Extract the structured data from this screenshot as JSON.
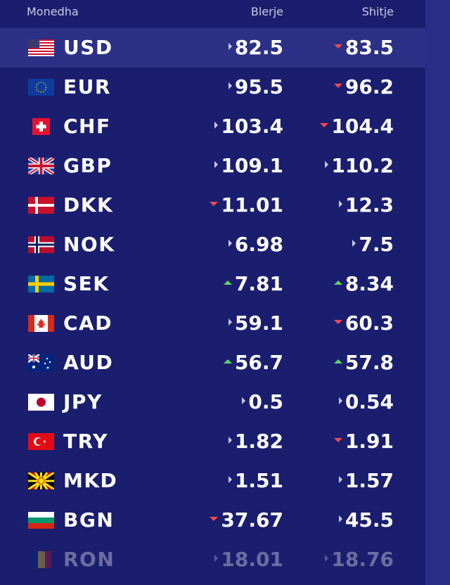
{
  "header": {
    "currency": "Monedha",
    "buy": "Blerje",
    "sell": "Shitje"
  },
  "rates": [
    {
      "code": "USD",
      "flag": "us-flag-icon",
      "buy": "82.5",
      "buy_trend": "neutral",
      "sell": "83.5",
      "sell_trend": "down"
    },
    {
      "code": "EUR",
      "flag": "eu-flag-icon",
      "buy": "95.5",
      "buy_trend": "neutral",
      "sell": "96.2",
      "sell_trend": "down"
    },
    {
      "code": "CHF",
      "flag": "ch-flag-icon",
      "buy": "103.4",
      "buy_trend": "neutral",
      "sell": "104.4",
      "sell_trend": "down"
    },
    {
      "code": "GBP",
      "flag": "gb-flag-icon",
      "buy": "109.1",
      "buy_trend": "neutral",
      "sell": "110.2",
      "sell_trend": "neutral"
    },
    {
      "code": "DKK",
      "flag": "dk-flag-icon",
      "buy": "11.01",
      "buy_trend": "down",
      "sell": "12.3",
      "sell_trend": "neutral"
    },
    {
      "code": "NOK",
      "flag": "no-flag-icon",
      "buy": "6.98",
      "buy_trend": "neutral",
      "sell": "7.5",
      "sell_trend": "neutral"
    },
    {
      "code": "SEK",
      "flag": "se-flag-icon",
      "buy": "7.81",
      "buy_trend": "up",
      "sell": "8.34",
      "sell_trend": "up"
    },
    {
      "code": "CAD",
      "flag": "ca-flag-icon",
      "buy": "59.1",
      "buy_trend": "neutral",
      "sell": "60.3",
      "sell_trend": "down"
    },
    {
      "code": "AUD",
      "flag": "au-flag-icon",
      "buy": "56.7",
      "buy_trend": "up",
      "sell": "57.8",
      "sell_trend": "up"
    },
    {
      "code": "JPY",
      "flag": "jp-flag-icon",
      "buy": "0.5",
      "buy_trend": "neutral",
      "sell": "0.54",
      "sell_trend": "neutral"
    },
    {
      "code": "TRY",
      "flag": "tr-flag-icon",
      "buy": "1.82",
      "buy_trend": "neutral",
      "sell": "1.91",
      "sell_trend": "down"
    },
    {
      "code": "MKD",
      "flag": "mk-flag-icon",
      "buy": "1.51",
      "buy_trend": "neutral",
      "sell": "1.57",
      "sell_trend": "neutral"
    },
    {
      "code": "BGN",
      "flag": "bg-flag-icon",
      "buy": "37.67",
      "buy_trend": "down",
      "sell": "45.5",
      "sell_trend": "neutral"
    },
    {
      "code": "RON",
      "flag": "ro-flag-icon",
      "buy": "18.01",
      "buy_trend": "neutral",
      "sell": "18.76",
      "sell_trend": "neutral"
    }
  ],
  "colors": {
    "background": "#1b1e6e",
    "active_row": "#2d3087",
    "up": "#5cd65c",
    "down": "#ef4b4b",
    "neutral": "#c8cae6"
  }
}
